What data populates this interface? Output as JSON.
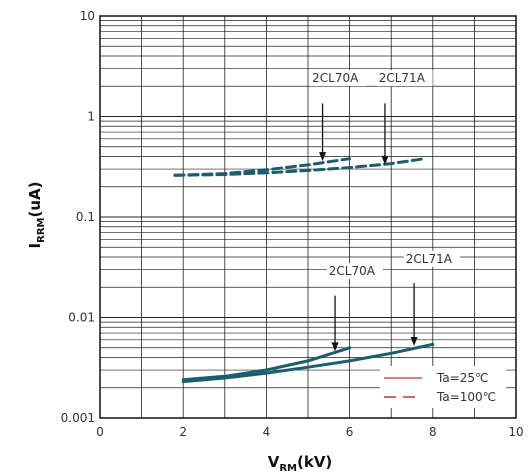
{
  "chart_data": {
    "type": "line",
    "x_axis": {
      "range": [
        0,
        10
      ],
      "ticks": [
        0,
        2,
        4,
        6,
        8,
        10
      ],
      "tick_labels": [
        "0",
        "2",
        "4",
        "6",
        "8",
        "10"
      ],
      "label_main": "V",
      "label_sub": "RM",
      "label_unit": "(kV)"
    },
    "y_axis": {
      "scale": "log",
      "range": [
        0.001,
        10
      ],
      "ticks": [
        0.001,
        0.01,
        0.1,
        1,
        10
      ],
      "tick_labels": [
        "0.001",
        "0.01",
        "0.1",
        "1",
        "10"
      ],
      "label_main": "I",
      "label_sub": "RRM",
      "label_unit": "(uA)"
    },
    "grid": true,
    "colors": {
      "series": "#1b5e6e",
      "legend_25": "#c0392b",
      "legend_100": "#c0392b",
      "grid": "#222222"
    },
    "series": [
      {
        "model": "2CL70A",
        "condition": "Ta=100℃",
        "dash": true,
        "x": [
          1.8,
          3,
          4,
          5,
          6
        ],
        "y": [
          0.26,
          0.27,
          0.295,
          0.33,
          0.38
        ]
      },
      {
        "model": "2CL71A",
        "condition": "Ta=100℃",
        "dash": true,
        "x": [
          1.8,
          3,
          4,
          5,
          6,
          7,
          7.8
        ],
        "y": [
          0.26,
          0.265,
          0.275,
          0.29,
          0.31,
          0.34,
          0.38
        ]
      },
      {
        "model": "2CL70A",
        "condition": "Ta=25℃",
        "dash": false,
        "x": [
          2,
          3,
          4,
          5,
          6
        ],
        "y": [
          0.0024,
          0.0026,
          0.003,
          0.0037,
          0.005
        ]
      },
      {
        "model": "2CL71A",
        "condition": "Ta=25℃",
        "dash": false,
        "x": [
          2,
          3,
          4,
          5,
          6,
          7,
          8
        ],
        "y": [
          0.0023,
          0.0025,
          0.0028,
          0.0032,
          0.0037,
          0.0044,
          0.0054
        ]
      }
    ],
    "annotations": [
      {
        "text": "2CL70A",
        "label_x": 5.1,
        "label_y": 2.2,
        "arrow_x": 5.35,
        "arrow_top": 1.35,
        "arrow_tip": 0.36
      },
      {
        "text": "2CL71A",
        "label_x": 6.7,
        "label_y": 2.2,
        "arrow_x": 6.85,
        "arrow_top": 1.35,
        "arrow_tip": 0.33
      },
      {
        "text": "2CL70A",
        "label_x": 5.5,
        "label_y": 0.0265,
        "arrow_x": 5.65,
        "arrow_top": 0.0165,
        "arrow_tip": 0.0046
      },
      {
        "text": "2CL71A",
        "label_x": 7.35,
        "label_y": 0.035,
        "arrow_x": 7.55,
        "arrow_top": 0.022,
        "arrow_tip": 0.0052
      }
    ],
    "legend": {
      "placement": "bottom-right",
      "entries": [
        {
          "label": "Ta=25℃",
          "dash": false
        },
        {
          "label": "Ta=100℃",
          "dash": true
        }
      ]
    }
  }
}
